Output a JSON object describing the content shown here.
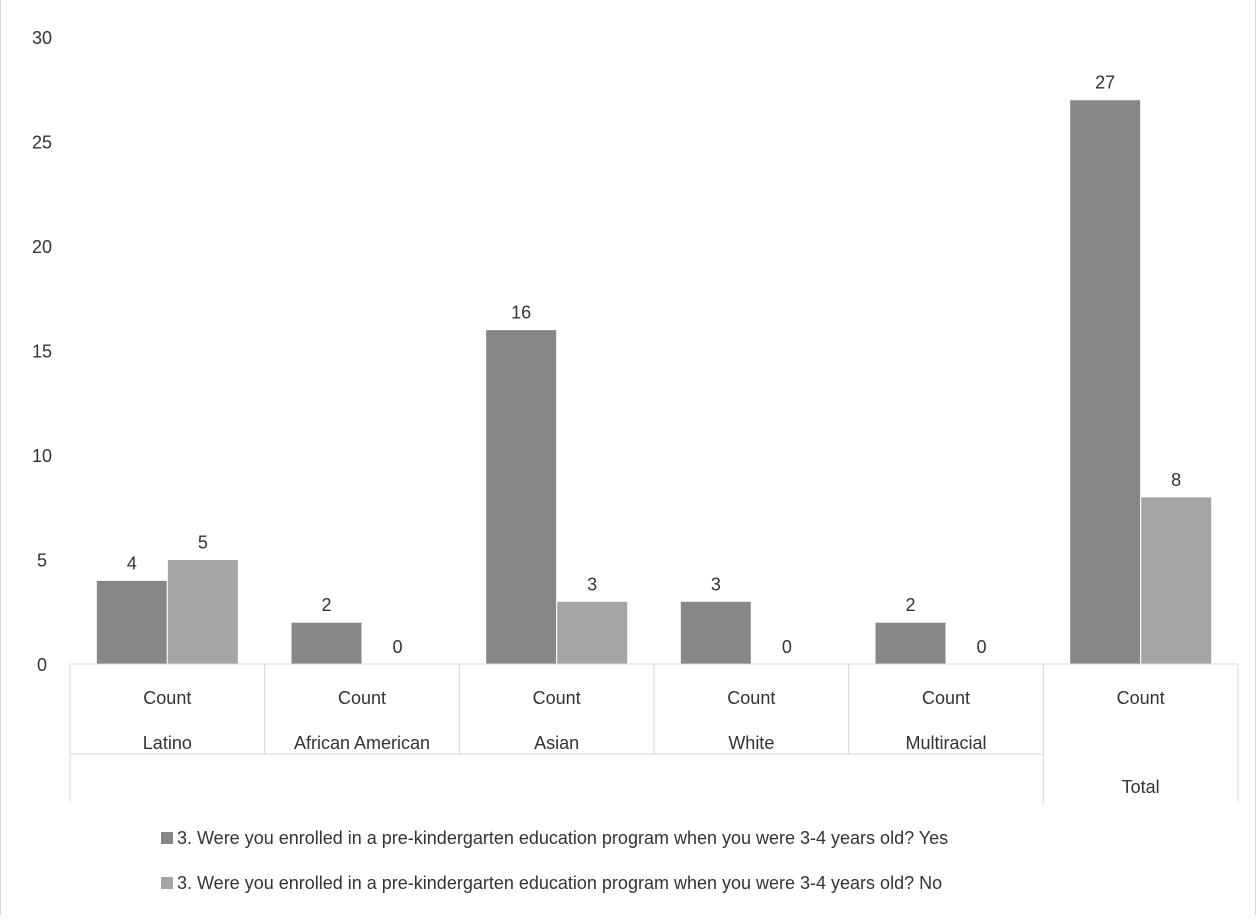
{
  "chart_data": {
    "type": "bar",
    "title": "",
    "xlabel": "",
    "ylabel": "",
    "ylim": [
      0,
      30
    ],
    "yticks": [
      0,
      5,
      10,
      15,
      20,
      25,
      30
    ],
    "grid": false,
    "legend_position": "bottom",
    "categories": [
      {
        "sub": "Count",
        "group": "Latino"
      },
      {
        "sub": "Count",
        "group": "African American"
      },
      {
        "sub": "Count",
        "group": "Asian"
      },
      {
        "sub": "Count",
        "group": "White"
      },
      {
        "sub": "Count",
        "group": "Multiracial"
      },
      {
        "sub": "Count",
        "group": "Total"
      }
    ],
    "series": [
      {
        "name": "3. Were you enrolled in a pre-kindergarten education program when you were 3-4 years old? Yes",
        "color": "#878787",
        "values": [
          4,
          2,
          16,
          3,
          2,
          27
        ]
      },
      {
        "name": "3. Were you enrolled in a pre-kindergarten education program when you were 3-4 years old? No",
        "color": "#a5a5a5",
        "values": [
          5,
          0,
          3,
          0,
          0,
          8
        ]
      }
    ]
  }
}
